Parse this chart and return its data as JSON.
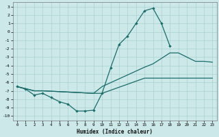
{
  "xlabel": "Humidex (Indice chaleur)",
  "xlim": [
    -0.5,
    23.5
  ],
  "ylim": [
    -10.5,
    3.5
  ],
  "xticks": [
    0,
    1,
    2,
    3,
    4,
    5,
    6,
    7,
    8,
    9,
    10,
    11,
    12,
    13,
    14,
    15,
    16,
    17,
    18,
    19,
    20,
    21,
    22,
    23
  ],
  "yticks": [
    3,
    2,
    1,
    0,
    -1,
    -2,
    -3,
    -4,
    -5,
    -6,
    -7,
    -8,
    -9,
    -10
  ],
  "background_color": "#cce8e8",
  "grid_color": "#aad0d0",
  "line_color": "#1a6b6b",
  "line1_x": [
    0,
    1,
    2,
    3,
    4,
    5,
    6,
    7,
    8,
    9,
    10,
    11,
    12,
    13,
    14,
    15,
    16,
    17,
    18
  ],
  "line1_y": [
    -6.5,
    -6.8,
    -7.5,
    -7.3,
    -7.8,
    -8.3,
    -8.6,
    -9.4,
    -9.4,
    -9.3,
    -7.3,
    -4.3,
    -1.5,
    -0.5,
    1.0,
    2.5,
    2.8,
    1.0,
    -1.7
  ],
  "line2_x": [
    0,
    2,
    3,
    9,
    10,
    15,
    16,
    18,
    19,
    20,
    21,
    22,
    23
  ],
  "line2_y": [
    -6.5,
    -7.0,
    -7.0,
    -7.3,
    -6.5,
    -4.2,
    -3.8,
    -2.5,
    -2.5,
    -3.0,
    -3.5,
    -3.5,
    -3.6
  ],
  "line3_x": [
    0,
    2,
    3,
    9,
    10,
    15,
    16,
    18,
    19,
    20,
    21,
    22,
    23
  ],
  "line3_y": [
    -6.5,
    -7.0,
    -7.0,
    -7.3,
    -7.3,
    -5.5,
    -5.5,
    -5.5,
    -5.5,
    -5.5,
    -5.5,
    -5.5,
    -5.5
  ]
}
